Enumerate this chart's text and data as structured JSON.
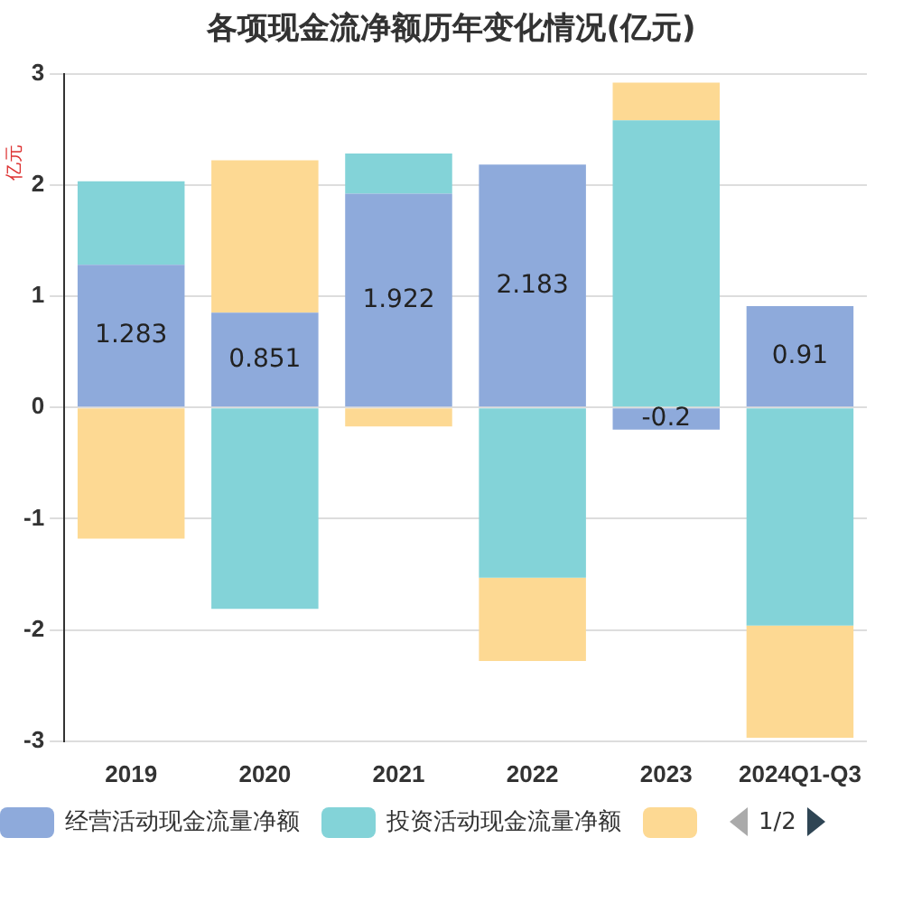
{
  "chart_data": {
    "type": "bar",
    "title": "各项现金流净额历年变化情况(亿元)",
    "ylabel": "亿元",
    "categories": [
      "2019",
      "2020",
      "2021",
      "2022",
      "2023",
      "2024Q1-Q3"
    ],
    "stacked": true,
    "ylim": [
      -3,
      3
    ],
    "yticks": [
      -3,
      -2,
      -1,
      0,
      1,
      2,
      3
    ],
    "grid": "y",
    "legend": "bottom",
    "series": [
      {
        "name": "经营活动现金流量净额",
        "color": "#8eaadb",
        "values": [
          1.283,
          0.851,
          1.922,
          2.183,
          -0.2,
          0.91
        ],
        "value_labels": [
          "1.283",
          "0.851",
          "1.922",
          "2.183",
          "-0.2",
          "0.91"
        ]
      },
      {
        "name": "投资活动现金流量净额",
        "color": "#83d3d8",
        "values": [
          0.75,
          -1.81,
          0.36,
          -1.53,
          2.58,
          -1.96
        ]
      },
      {
        "color": "#fdd993",
        "values": [
          -1.18,
          1.37,
          -0.17,
          -0.75,
          0.34,
          -1.01
        ]
      }
    ],
    "annotations": [
      "1/2"
    ]
  }
}
